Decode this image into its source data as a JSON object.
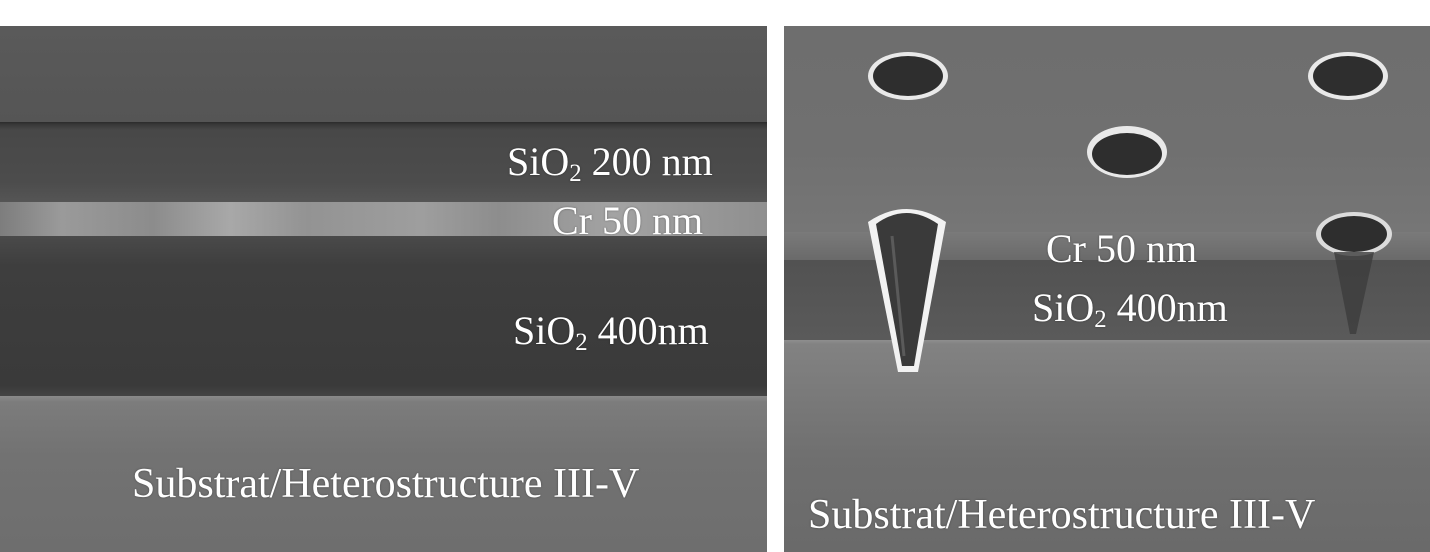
{
  "left_panel": {
    "labels": {
      "sio2_top_prefix": "SiO",
      "sio2_top_sub": "2",
      "sio2_top_suffix": " 200 nm",
      "cr": "Cr 50 nm",
      "sio2_bottom_prefix": "SiO",
      "sio2_bottom_sub": "2",
      "sio2_bottom_suffix": " 400nm",
      "substrate": "Substrat/Heterostructure III-V"
    }
  },
  "right_panel": {
    "labels": {
      "cr": "Cr 50 nm",
      "sio2_prefix": "SiO",
      "sio2_sub": "2",
      "sio2_suffix": " 400nm",
      "substrate": "Substrat/Heterostructure III-V"
    }
  },
  "colors": {
    "background": "#ffffff",
    "label_text": "#ffffff"
  }
}
